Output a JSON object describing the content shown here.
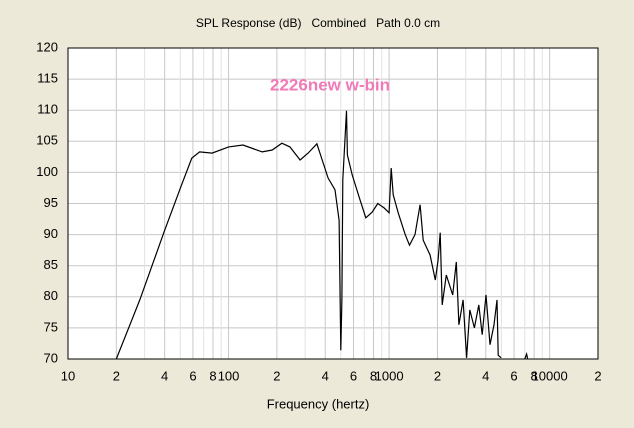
{
  "chart_data": {
    "type": "line",
    "title": "SPL Response (dB)   Combined   Path 0.0 cm",
    "annotation": "2226new w-bin",
    "x_label": "Frequency (hertz)",
    "xscale": "log",
    "xlim": [
      10,
      20000
    ],
    "ylim": [
      70,
      120
    ],
    "xticks": [
      10,
      {
        "value": 20,
        "label": "2"
      },
      {
        "value": 40,
        "label": "4"
      },
      {
        "value": 60,
        "label": "6"
      },
      {
        "value": 80,
        "label": "8"
      },
      100,
      {
        "value": 200,
        "label": "2"
      },
      {
        "value": 400,
        "label": "4"
      },
      {
        "value": 600,
        "label": "6"
      },
      {
        "value": 800,
        "label": "8"
      },
      1000,
      {
        "value": 2000,
        "label": "2"
      },
      {
        "value": 4000,
        "label": "4"
      },
      {
        "value": 6000,
        "label": "6"
      },
      {
        "value": 8000,
        "label": "8"
      },
      10000,
      {
        "value": 20000,
        "label": "2"
      }
    ],
    "minor_xticks": [
      30,
      50,
      70,
      90,
      300,
      500,
      700,
      900,
      3000,
      5000,
      7000,
      9000
    ],
    "yticks": [
      70,
      75,
      80,
      85,
      90,
      95,
      100,
      105,
      110,
      115,
      120
    ],
    "grid": true,
    "series": [
      {
        "color": "#000000",
        "x": [
          20,
          28,
          40,
          51,
          59,
          66,
          79,
          100,
          123,
          162,
          187,
          215,
          241,
          279,
          313,
          355,
          383,
          417,
          460,
          488,
          500,
          508,
          515,
          543,
          550,
          589,
          659,
          716,
          783,
          850,
          930,
          1000,
          1030,
          1060,
          1140,
          1260,
          1340,
          1450,
          1560,
          1630,
          1800,
          1940,
          2020,
          2080,
          2140,
          2270,
          2490,
          2620,
          2720,
          2890,
          3040,
          3180,
          3400,
          3620,
          3800,
          4010,
          4250,
          4500,
          4700,
          4780,
          4990,
          6000,
          7000,
          7180,
          7300
        ],
        "values": [
          70,
          79.5,
          90.7,
          98,
          102.3,
          103.3,
          103.1,
          104.1,
          104.4,
          103.3,
          103.6,
          104.7,
          104.1,
          102,
          103.1,
          104.6,
          102,
          99.1,
          97.2,
          92.3,
          71.4,
          79.5,
          98.8,
          109.9,
          102.8,
          99.6,
          95.6,
          92.7,
          93.6,
          95,
          94.3,
          93.5,
          100.7,
          96.4,
          93.5,
          90,
          88.3,
          90,
          94.8,
          89.1,
          86.7,
          82.7,
          85.9,
          90.3,
          78.7,
          83.5,
          80.3,
          85.6,
          75.5,
          79.5,
          70.2,
          77.9,
          75,
          78.7,
          73.9,
          80.3,
          72.3,
          75.5,
          79.5,
          70.6,
          70.2,
          null,
          70,
          70.8,
          70
        ]
      }
    ]
  }
}
